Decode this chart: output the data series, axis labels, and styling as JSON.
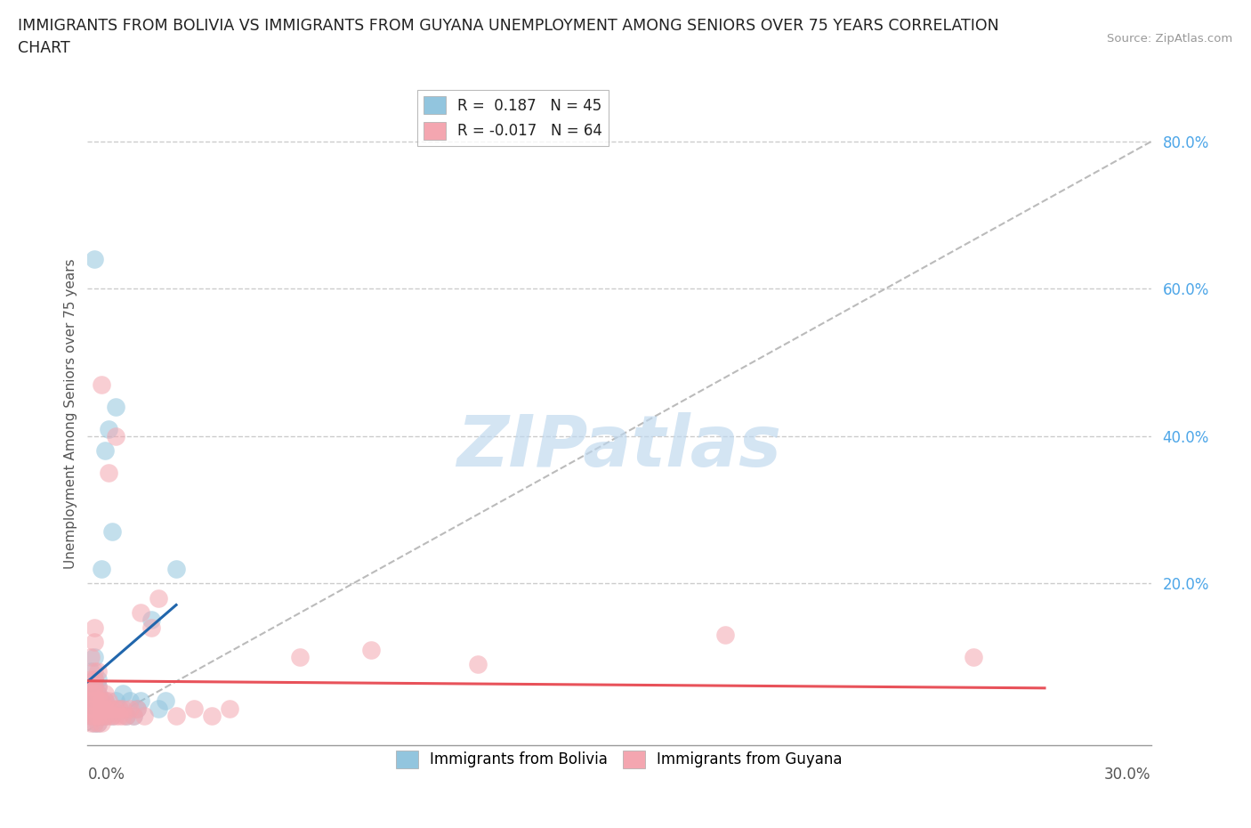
{
  "title_line1": "IMMIGRANTS FROM BOLIVIA VS IMMIGRANTS FROM GUYANA UNEMPLOYMENT AMONG SENIORS OVER 75 YEARS CORRELATION",
  "title_line2": "CHART",
  "source": "Source: ZipAtlas.com",
  "ylabel": "Unemployment Among Seniors over 75 years",
  "xlim": [
    0.0,
    0.3
  ],
  "ylim": [
    -0.02,
    0.88
  ],
  "bolivia_color": "#92c5de",
  "guyana_color": "#f4a6b0",
  "bolivia_trend_color": "#2166ac",
  "guyana_trend_color": "#e8525a",
  "bolivia_R": 0.187,
  "bolivia_N": 45,
  "guyana_R": -0.017,
  "guyana_N": 64,
  "watermark": "ZIPatlas",
  "ref_line_color": "#bbbbbb",
  "grid_color": "#cccccc",
  "ytick_color": "#4da6e8",
  "background_color": "#ffffff",
  "bolivia_x": [
    0.001,
    0.001,
    0.001,
    0.001,
    0.001,
    0.002,
    0.002,
    0.002,
    0.002,
    0.002,
    0.002,
    0.002,
    0.002,
    0.003,
    0.003,
    0.003,
    0.003,
    0.003,
    0.003,
    0.003,
    0.004,
    0.004,
    0.004,
    0.004,
    0.005,
    0.005,
    0.005,
    0.006,
    0.006,
    0.007,
    0.007,
    0.008,
    0.008,
    0.009,
    0.01,
    0.011,
    0.012,
    0.013,
    0.014,
    0.015,
    0.018,
    0.02,
    0.022,
    0.025,
    0.002
  ],
  "bolivia_y": [
    0.02,
    0.04,
    0.05,
    0.06,
    0.08,
    0.01,
    0.02,
    0.03,
    0.04,
    0.05,
    0.06,
    0.07,
    0.64,
    0.01,
    0.02,
    0.03,
    0.04,
    0.05,
    0.06,
    0.07,
    0.02,
    0.03,
    0.04,
    0.22,
    0.02,
    0.04,
    0.38,
    0.03,
    0.41,
    0.02,
    0.27,
    0.04,
    0.44,
    0.03,
    0.05,
    0.02,
    0.04,
    0.02,
    0.03,
    0.04,
    0.15,
    0.03,
    0.04,
    0.22,
    0.1
  ],
  "guyana_x": [
    0.001,
    0.001,
    0.001,
    0.001,
    0.001,
    0.001,
    0.001,
    0.001,
    0.002,
    0.002,
    0.002,
    0.002,
    0.002,
    0.002,
    0.002,
    0.002,
    0.002,
    0.002,
    0.003,
    0.003,
    0.003,
    0.003,
    0.003,
    0.003,
    0.003,
    0.004,
    0.004,
    0.004,
    0.004,
    0.004,
    0.005,
    0.005,
    0.005,
    0.005,
    0.006,
    0.006,
    0.006,
    0.006,
    0.007,
    0.007,
    0.008,
    0.008,
    0.008,
    0.009,
    0.009,
    0.01,
    0.01,
    0.011,
    0.012,
    0.013,
    0.014,
    0.015,
    0.016,
    0.018,
    0.02,
    0.025,
    0.03,
    0.035,
    0.04,
    0.06,
    0.08,
    0.11,
    0.18,
    0.25
  ],
  "guyana_y": [
    0.01,
    0.02,
    0.03,
    0.04,
    0.05,
    0.06,
    0.07,
    0.1,
    0.01,
    0.02,
    0.03,
    0.04,
    0.05,
    0.06,
    0.07,
    0.08,
    0.12,
    0.14,
    0.01,
    0.02,
    0.03,
    0.04,
    0.05,
    0.06,
    0.08,
    0.01,
    0.02,
    0.03,
    0.04,
    0.47,
    0.02,
    0.03,
    0.04,
    0.05,
    0.02,
    0.03,
    0.04,
    0.35,
    0.02,
    0.03,
    0.02,
    0.03,
    0.4,
    0.02,
    0.03,
    0.02,
    0.03,
    0.02,
    0.03,
    0.02,
    0.03,
    0.16,
    0.02,
    0.14,
    0.18,
    0.02,
    0.03,
    0.02,
    0.03,
    0.1,
    0.11,
    0.09,
    0.13,
    0.1
  ]
}
